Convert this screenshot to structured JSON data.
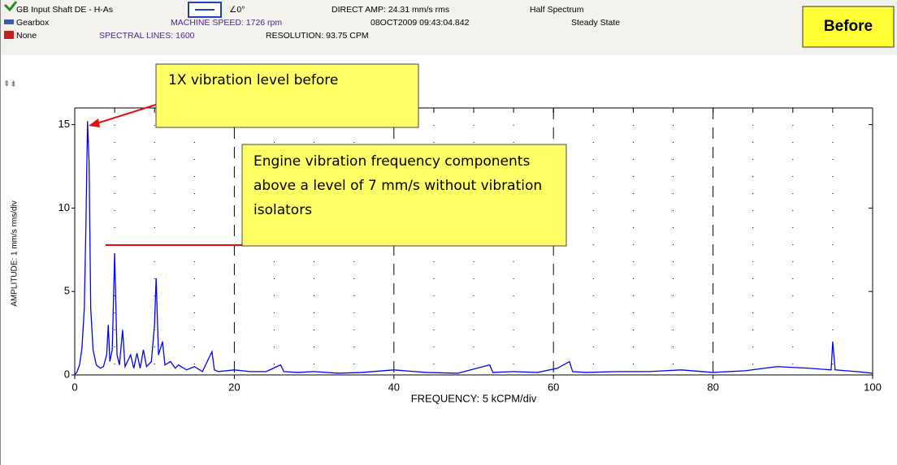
{
  "chart_data": {
    "type": "line",
    "header": {
      "point": "GB Input Shaft DE - H-As",
      "machine": "Gearbox",
      "note": "None",
      "phase": "∠0°",
      "machine_speed": "MACHINE SPEED: 1726 rpm",
      "spectral_lines": "SPECTRAL LINES: 1600",
      "direct_amp": "DIRECT AMP: 24.31 mm/s rms",
      "timestamp": "08OCT2009 09:43:04.842",
      "resolution": "RESOLUTION: 93.75 CPM",
      "spectrum": "Half Spectrum",
      "state": "Steady State",
      "badge": "Before"
    },
    "annotations": [
      "1X vibration level before",
      "Engine vibration frequency components above a level of 7 mm/s without vibration isolators"
    ],
    "x_label": "FREQUENCY: 5 kCPM/div",
    "y_label": "AMPLITUDE: 1 mm/s rms/div",
    "x": [
      0,
      0.3,
      0.6,
      0.9,
      1.2,
      1.4,
      1.6,
      1.8,
      2.0,
      2.3,
      2.7,
      3.2,
      3.6,
      4.0,
      4.2,
      4.4,
      4.7,
      5.0,
      5.3,
      5.6,
      6.0,
      6.3,
      7.0,
      7.4,
      7.8,
      8.2,
      8.6,
      9.0,
      9.6,
      10.0,
      10.2,
      10.5,
      11.0,
      11.3,
      12,
      12.6,
      13,
      14,
      15,
      16,
      17.2,
      17.5,
      18,
      20,
      22,
      24,
      25.8,
      26.2,
      28,
      30,
      33,
      36,
      40,
      44,
      48,
      52,
      52.4,
      55,
      58,
      60.5,
      62,
      62.4,
      64,
      68,
      72,
      76,
      80,
      84,
      88,
      92,
      94.8,
      95,
      95.3,
      98,
      100
    ],
    "series": [
      {
        "name": "Spectrum",
        "color": "#0000ff",
        "values": [
          0,
          0.2,
          0.6,
          1.6,
          4,
          9,
          15.2,
          12.7,
          4,
          1.5,
          0.6,
          0.4,
          0.5,
          1.2,
          3,
          0.8,
          1.5,
          7.3,
          1.2,
          0.6,
          2.7,
          0.5,
          1.2,
          0.4,
          1.3,
          0.4,
          1.5,
          0.5,
          0.8,
          3,
          5.8,
          1.2,
          2,
          0.6,
          0.8,
          0.4,
          0.6,
          0.3,
          0.5,
          0.2,
          1.4,
          0.3,
          0.2,
          0.3,
          0.2,
          0.2,
          0.6,
          0.2,
          0.15,
          0.2,
          0.1,
          0.15,
          0.3,
          0.15,
          0.1,
          0.6,
          0.15,
          0.2,
          0.15,
          0.4,
          0.8,
          0.2,
          0.15,
          0.2,
          0.2,
          0.3,
          0.15,
          0.25,
          0.5,
          0.4,
          0.3,
          2,
          0.3,
          0.2,
          0.1
        ]
      }
    ],
    "xlim": [
      0,
      100
    ],
    "ylim": [
      0,
      16
    ],
    "xticks": [
      0,
      20,
      40,
      60,
      80,
      100
    ],
    "yticks": [
      0,
      5,
      10,
      15
    ],
    "grid": true
  }
}
